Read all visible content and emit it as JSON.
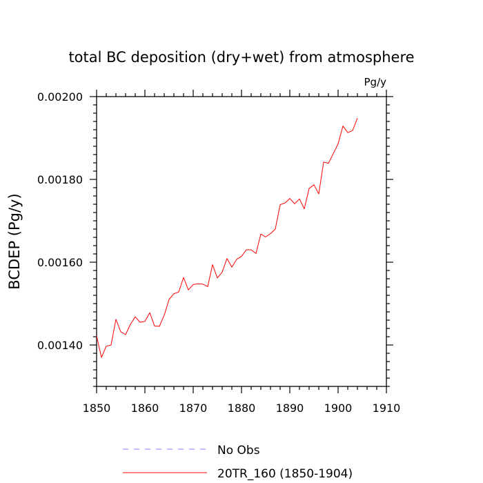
{
  "chart_data": {
    "type": "line",
    "title": "total BC deposition (dry+wet) from atmosphere",
    "units_label": "Pg/y",
    "ylabel": "BCDEP  (Pg/y)",
    "xlabel": "",
    "xlim": [
      1850,
      1910
    ],
    "ylim": [
      0.0013,
      0.002
    ],
    "xticks": [
      1850,
      1860,
      1870,
      1880,
      1890,
      1900,
      1910
    ],
    "xtick_labels": [
      "1850",
      "1860",
      "1870",
      "1880",
      "1890",
      "1900",
      "1910"
    ],
    "yticks": [
      0.0014,
      0.0016,
      0.0018,
      0.002
    ],
    "ytick_labels": [
      "0.00140",
      "0.00160",
      "0.00180",
      "0.00200"
    ],
    "grid": false,
    "legend_position": "bottom",
    "series": [
      {
        "name": "No Obs",
        "color": "#7a7aff",
        "style": "dashed",
        "x": [],
        "values": []
      },
      {
        "name": "20TR_160 (1850-1904)",
        "color": "#ff0000",
        "style": "solid",
        "x": [
          1850,
          1851,
          1852,
          1853,
          1854,
          1855,
          1856,
          1857,
          1858,
          1859,
          1860,
          1861,
          1862,
          1863,
          1864,
          1865,
          1866,
          1867,
          1868,
          1869,
          1870,
          1871,
          1872,
          1873,
          1874,
          1875,
          1876,
          1877,
          1878,
          1879,
          1880,
          1881,
          1882,
          1883,
          1884,
          1885,
          1886,
          1887,
          1888,
          1889,
          1890,
          1891,
          1892,
          1893,
          1894,
          1895,
          1896,
          1897,
          1898,
          1899,
          1900,
          1901,
          1902,
          1903,
          1904
        ],
        "values": [
          0.001422,
          0.00137,
          0.001397,
          0.0014,
          0.001462,
          0.001432,
          0.001425,
          0.00145,
          0.001468,
          0.001455,
          0.001457,
          0.001478,
          0.001446,
          0.001445,
          0.001472,
          0.00151,
          0.001524,
          0.001528,
          0.001563,
          0.001533,
          0.001546,
          0.001548,
          0.001547,
          0.001541,
          0.001594,
          0.001562,
          0.001576,
          0.001609,
          0.001588,
          0.001607,
          0.001614,
          0.00163,
          0.00163,
          0.001621,
          0.001668,
          0.001661,
          0.001669,
          0.00168,
          0.001739,
          0.001743,
          0.001754,
          0.001741,
          0.001753,
          0.001729,
          0.001778,
          0.001787,
          0.001765,
          0.001842,
          0.001839,
          0.001862,
          0.001886,
          0.001929,
          0.001913,
          0.001918,
          0.001948
        ]
      }
    ]
  }
}
